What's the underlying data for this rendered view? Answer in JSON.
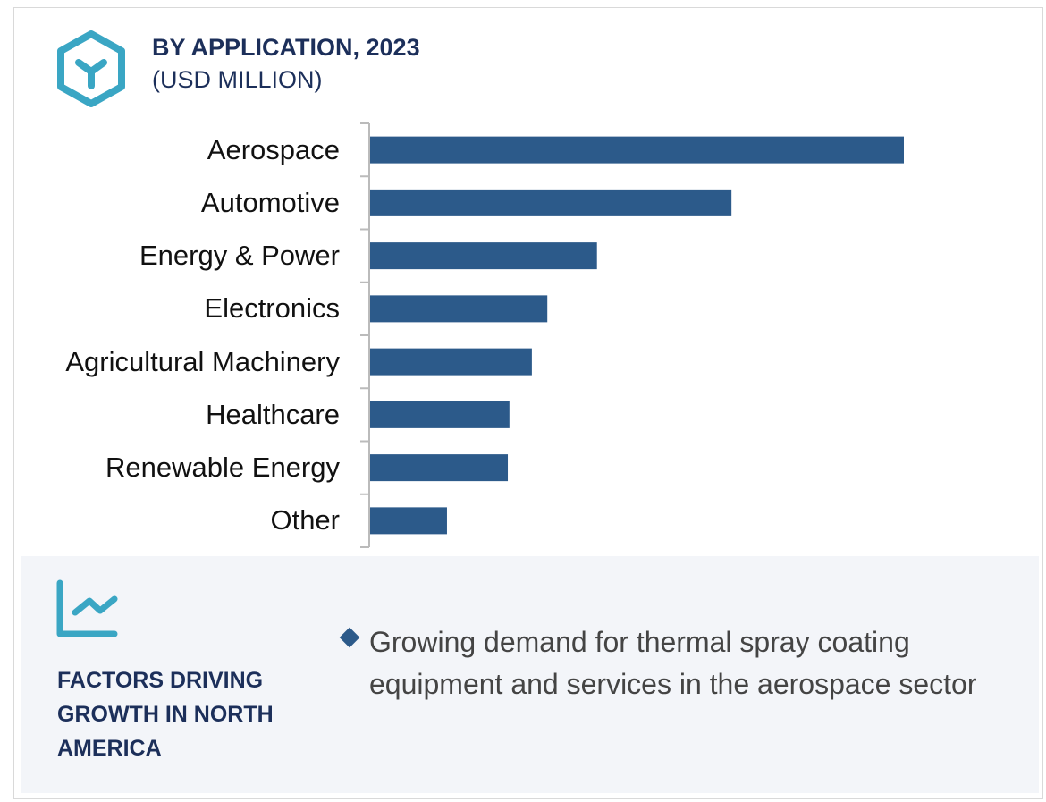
{
  "header": {
    "title": "BY APPLICATION, 2023",
    "subtitle": "(USD MILLION)",
    "icon": "hexagon-y-icon"
  },
  "chart_data": {
    "type": "bar",
    "orientation": "horizontal",
    "title": "BY APPLICATION, 2023",
    "subtitle": "(USD MILLION)",
    "categories": [
      "Aerospace",
      "Automotive",
      "Energy & Power",
      "Electronics",
      "Agricultural Machinery",
      "Healthcare",
      "Renewable Energy",
      "Other"
    ],
    "values": [
      100,
      67.7,
      42.5,
      33.2,
      30.3,
      26.1,
      25.8,
      14.4
    ],
    "value_note_relative": true,
    "bar_color": "#2c5a8a",
    "grid": false
  },
  "footer": {
    "icon": "line-chart-icon",
    "heading": "FACTORS DRIVING GROWTH IN NORTH AMERICA",
    "bullets": [
      "Growing demand for thermal spray coating equipment and services in the aerospace sector"
    ]
  },
  "colors": {
    "accent": "#3aa6c4",
    "navy": "#1c2f5a",
    "bar": "#2c5a8a",
    "panel": "#f3f5f9"
  }
}
